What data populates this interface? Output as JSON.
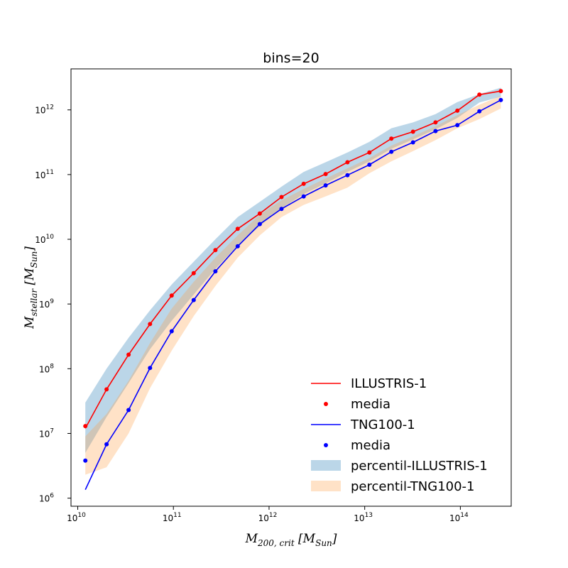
{
  "chart_data": {
    "type": "line",
    "title": "bins=20",
    "xlabel": "M_{200,crit} [M_{Sun}]",
    "ylabel": "M_{stellar} [M_{Sun}]",
    "xscale": "log",
    "yscale": "log",
    "xlim": [
      8500000000.0,
      340000000000000.0
    ],
    "ylim": [
      750000.0,
      4300000000000.0
    ],
    "xticks": [
      {
        "value": 10000000000.0,
        "label": "10",
        "exp": "10"
      },
      {
        "value": 100000000000.0,
        "label": "10",
        "exp": "11"
      },
      {
        "value": 1000000000000.0,
        "label": "10",
        "exp": "12"
      },
      {
        "value": 10000000000000.0,
        "label": "10",
        "exp": "13"
      },
      {
        "value": 100000000000000.0,
        "label": "10",
        "exp": "14"
      }
    ],
    "yticks": [
      {
        "value": 1000000.0,
        "label": "10",
        "exp": "6"
      },
      {
        "value": 10000000.0,
        "label": "10",
        "exp": "7"
      },
      {
        "value": 100000000.0,
        "label": "10",
        "exp": "8"
      },
      {
        "value": 1000000000.0,
        "label": "10",
        "exp": "9"
      },
      {
        "value": 10000000000.0,
        "label": "10",
        "exp": "10"
      },
      {
        "value": 100000000000.0,
        "label": "10",
        "exp": "11"
      },
      {
        "value": 1000000000000.0,
        "label": "10",
        "exp": "12"
      }
    ],
    "legend_position": "lower-right",
    "grid": false,
    "series": [
      {
        "name": "ILLUSTRIS-1",
        "kind": "line",
        "color": "#ff0000",
        "x": [
          12000000000.0,
          20000000000.0,
          34000000000.0,
          57000000000.0,
          96000000000.0,
          163000000000.0,
          275000000000.0,
          470000000000.0,
          800000000000.0,
          1350000000000.0,
          2300000000000.0,
          3900000000000.0,
          6600000000000.0,
          11200000000000.0,
          19000000000000.0,
          32000000000000.0,
          55000000000000.0,
          93000000000000.0,
          158000000000000.0,
          265000000000000.0
        ],
        "y": [
          12000000.0,
          48000000.0,
          165000000.0,
          490000000.0,
          1350000000.0,
          3000000000.0,
          6800000000.0,
          14500000000.0,
          25000000000.0,
          45000000000.0,
          72000000000.0,
          102000000000.0,
          155000000000.0,
          220000000000.0,
          360000000000.0,
          460000000000.0,
          640000000000.0,
          970000000000.0,
          1720000000000.0,
          1950000000000.0
        ]
      },
      {
        "name": "media",
        "kind": "points",
        "color": "#ff0000",
        "x": [
          12000000000.0,
          20000000000.0,
          34000000000.0,
          57000000000.0,
          96000000000.0,
          163000000000.0,
          275000000000.0,
          470000000000.0,
          800000000000.0,
          1350000000000.0,
          2300000000000.0,
          3900000000000.0,
          6600000000000.0,
          11200000000000.0,
          19000000000000.0,
          32000000000000.0,
          55000000000000.0,
          93000000000000.0,
          158000000000000.0,
          265000000000000.0
        ],
        "y": [
          13000000.0,
          48000000.0,
          165000000.0,
          490000000.0,
          1350000000.0,
          3000000000.0,
          6800000000.0,
          14500000000.0,
          25000000000.0,
          45000000000.0,
          72000000000.0,
          102000000000.0,
          155000000000.0,
          220000000000.0,
          360000000000.0,
          460000000000.0,
          640000000000.0,
          970000000000.0,
          1720000000000.0,
          1950000000000.0
        ]
      },
      {
        "name": "TNG100-1",
        "kind": "line",
        "color": "#0000ff",
        "x": [
          12000000000.0,
          20000000000.0,
          34000000000.0,
          57000000000.0,
          96000000000.0,
          163000000000.0,
          275000000000.0,
          470000000000.0,
          800000000000.0,
          1350000000000.0,
          2300000000000.0,
          3900000000000.0,
          6600000000000.0,
          11200000000000.0,
          19000000000000.0,
          32000000000000.0,
          55000000000000.0,
          93000000000000.0,
          158000000000000.0,
          265000000000000.0
        ],
        "y": [
          1350000.0,
          6800000.0,
          23000000.0,
          103000000.0,
          380000000.0,
          1150000000.0,
          3200000000.0,
          7800000000.0,
          17200000000.0,
          29500000000.0,
          46000000000.0,
          68000000000.0,
          98000000000.0,
          142000000000.0,
          225000000000.0,
          315000000000.0,
          470000000000.0,
          580000000000.0,
          950000000000.0,
          1420000000000.0
        ]
      },
      {
        "name": "media",
        "kind": "points",
        "color": "#0000ff",
        "x": [
          12000000000.0,
          20000000000.0,
          34000000000.0,
          57000000000.0,
          96000000000.0,
          163000000000.0,
          275000000000.0,
          470000000000.0,
          800000000000.0,
          1350000000000.0,
          2300000000000.0,
          3900000000000.0,
          6600000000000.0,
          11200000000000.0,
          19000000000000.0,
          32000000000000.0,
          55000000000000.0,
          93000000000000.0,
          158000000000000.0,
          265000000000000.0
        ],
        "y": [
          3800000.0,
          6800000.0,
          23000000.0,
          103000000.0,
          380000000.0,
          1150000000.0,
          3200000000.0,
          7800000000.0,
          17200000000.0,
          29500000000.0,
          46000000000.0,
          68000000000.0,
          98000000000.0,
          142000000000.0,
          225000000000.0,
          315000000000.0,
          470000000000.0,
          580000000000.0,
          950000000000.0,
          1420000000000.0
        ]
      }
    ],
    "bands": [
      {
        "name": "percentil-ILLUSTRIS-1",
        "color": "#1f77b4",
        "opacity": 0.3,
        "x": [
          12000000000.0,
          20000000000.0,
          34000000000.0,
          57000000000.0,
          96000000000.0,
          163000000000.0,
          275000000000.0,
          470000000000.0,
          800000000000.0,
          1350000000000.0,
          2300000000000.0,
          3900000000000.0,
          6600000000000.0,
          11200000000000.0,
          19000000000000.0,
          32000000000000.0,
          55000000000000.0,
          93000000000000.0,
          158000000000000.0,
          265000000000000.0
        ],
        "lower": [
          5000000.0,
          18000000.0,
          60000000.0,
          200000000.0,
          550000000.0,
          1400000000.0,
          3500000000.0,
          8000000000.0,
          16000000000.0,
          30000000000.0,
          50000000000.0,
          73000000000.0,
          110000000000.0,
          160000000000.0,
          250000000000.0,
          350000000000.0,
          500000000000.0,
          750000000000.0,
          1300000000000.0,
          1600000000000.0
        ],
        "upper": [
          30000000.0,
          100000000.0,
          300000000.0,
          800000000.0,
          2000000000.0,
          4500000000.0,
          10000000000.0,
          22000000000.0,
          38000000000.0,
          65000000000.0,
          110000000000.0,
          155000000000.0,
          220000000000.0,
          320000000000.0,
          520000000000.0,
          640000000000.0,
          860000000000.0,
          1320000000000.0,
          1750000000000.0,
          2200000000000.0
        ]
      },
      {
        "name": "percentil-TNG100-1",
        "color": "#ffa044",
        "opacity": 0.3,
        "x": [
          12000000000.0,
          20000000000.0,
          34000000000.0,
          57000000000.0,
          96000000000.0,
          163000000000.0,
          275000000000.0,
          470000000000.0,
          800000000000.0,
          1350000000000.0,
          2300000000000.0,
          3900000000000.0,
          6600000000000.0,
          11200000000000.0,
          19000000000000.0,
          32000000000000.0,
          55000000000000.0,
          93000000000000.0,
          158000000000000.0,
          265000000000000.0
        ],
        "lower": [
          2300000.0,
          3000000.0,
          10000000.0,
          50000000.0,
          190000000.0,
          650000000.0,
          1900000000.0,
          5200000000.0,
          11500000000.0,
          22000000000.0,
          34000000000.0,
          46000000000.0,
          63000000000.0,
          105000000000.0,
          160000000000.0,
          230000000000.0,
          340000000000.0,
          520000000000.0,
          720000000000.0,
          1050000000000.0
        ],
        "upper": [
          9000000.0,
          20000000.0,
          65000000.0,
          250000000.0,
          850000000.0,
          2200000000.0,
          5200000000.0,
          11500000000.0,
          24000000000.0,
          40000000000.0,
          60000000000.0,
          87000000000.0,
          125000000000.0,
          180000000000.0,
          280000000000.0,
          390000000000.0,
          560000000000.0,
          830000000000.0,
          1200000000000.0,
          1650000000000.0
        ]
      }
    ],
    "legend": [
      {
        "label": "ILLUSTRIS-1",
        "kind": "line",
        "color": "#ff0000"
      },
      {
        "label": "media",
        "kind": "point",
        "color": "#ff0000"
      },
      {
        "label": "TNG100-1",
        "kind": "line",
        "color": "#0000ff"
      },
      {
        "label": "media",
        "kind": "point",
        "color": "#0000ff"
      },
      {
        "label": "percentil-ILLUSTRIS-1",
        "kind": "patch",
        "color": "#1f77b4"
      },
      {
        "label": "percentil-TNG100-1",
        "kind": "patch",
        "color": "#ffa044"
      }
    ]
  }
}
